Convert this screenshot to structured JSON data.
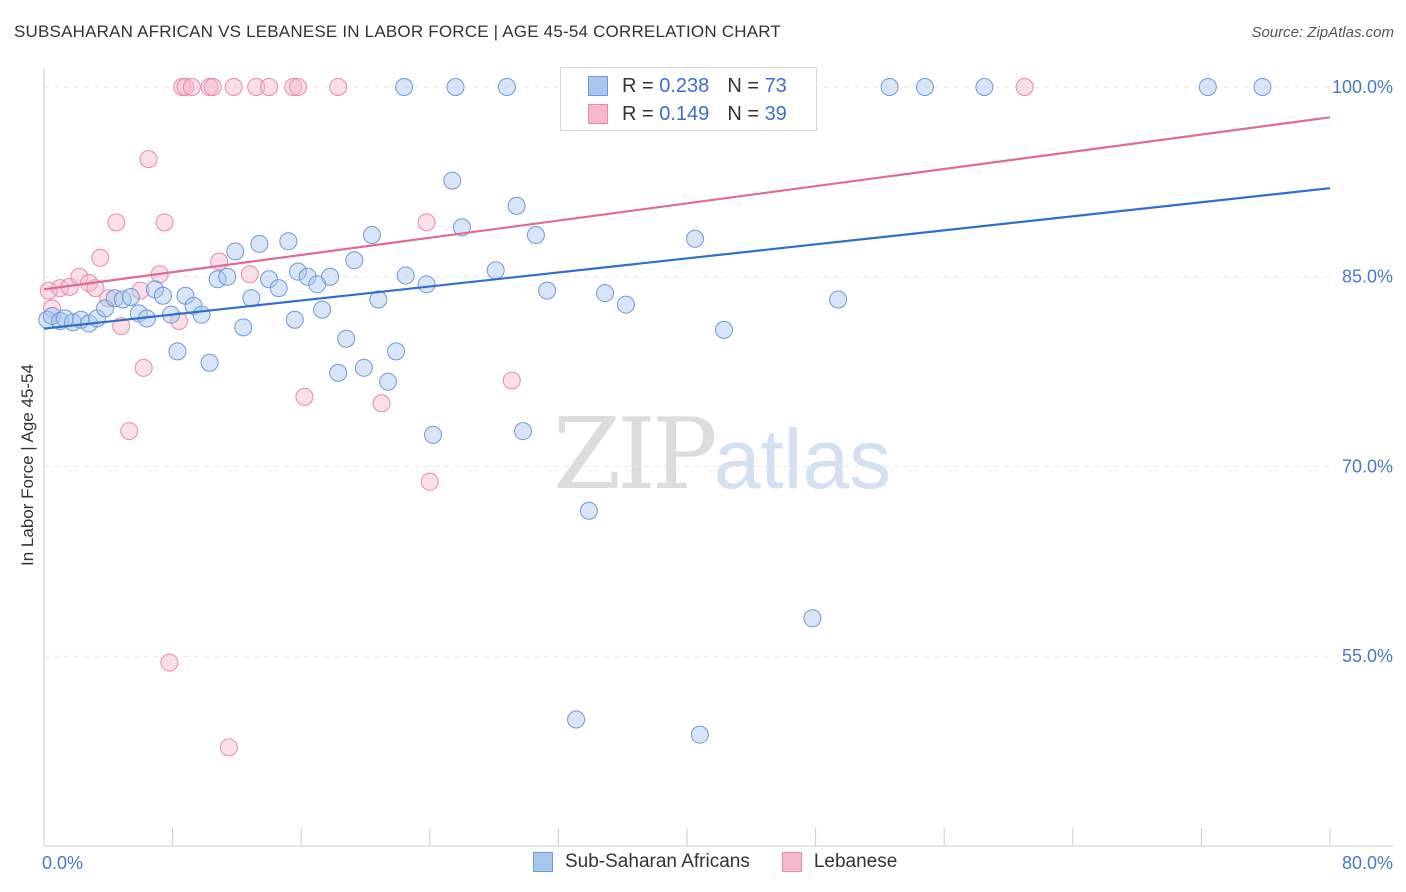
{
  "header": {
    "title": "SUBSAHARAN AFRICAN VS LEBANESE IN LABOR FORCE | AGE 45-54 CORRELATION CHART",
    "source": "Source: ZipAtlas.com"
  },
  "watermark": {
    "zip": "ZIP",
    "atlas": "atlas"
  },
  "legend": {
    "rows": [
      {
        "r_label": "R =",
        "r_value": "0.238",
        "n_label": "N =",
        "n_value": "73"
      },
      {
        "r_label": "R =",
        "r_value": "0.149",
        "n_label": "N =",
        "n_value": "39"
      }
    ],
    "bottom": [
      "Sub-Saharan Africans",
      "Lebanese"
    ]
  },
  "colors": {
    "blue_fill": "#a8c6ee",
    "blue_stroke": "#6f9ad6",
    "blue_line": "#2f6fcc",
    "pink_fill": "#f5b8cb",
    "pink_stroke": "#e98aa8",
    "pink_line": "#e0699a",
    "grid": "#e6e6e6",
    "tick_text": "#4a78c8"
  },
  "chart_data": {
    "type": "scatter",
    "title": "SUBSAHARAN AFRICAN VS LEBANESE IN LABOR FORCE | AGE 45-54 CORRELATION CHART",
    "xlabel": "",
    "ylabel": "In Labor Force | Age 45-54",
    "xlim": [
      0,
      80
    ],
    "ylim": [
      40,
      101.5
    ],
    "x_tick_labels": [
      "0.0%",
      "80.0%"
    ],
    "y_ticks": [
      55,
      70,
      85,
      100
    ],
    "y_tick_labels": [
      "55.0%",
      "70.0%",
      "85.0%",
      "100.0%"
    ],
    "grid": true,
    "series": [
      {
        "name": "Sub-Saharan Africans",
        "trend": [
          [
            0,
            80.9
          ],
          [
            80,
            92.0
          ]
        ],
        "points": [
          [
            0.2,
            81.6
          ],
          [
            0.5,
            81.9
          ],
          [
            1.0,
            81.5
          ],
          [
            1.3,
            81.7
          ],
          [
            1.8,
            81.4
          ],
          [
            2.3,
            81.6
          ],
          [
            2.8,
            81.3
          ],
          [
            3.3,
            81.7
          ],
          [
            3.8,
            82.5
          ],
          [
            4.4,
            83.3
          ],
          [
            4.9,
            83.2
          ],
          [
            5.4,
            83.4
          ],
          [
            5.9,
            82.1
          ],
          [
            6.4,
            81.7
          ],
          [
            6.9,
            84.0
          ],
          [
            7.4,
            83.5
          ],
          [
            7.9,
            82.0
          ],
          [
            8.3,
            79.1
          ],
          [
            8.8,
            83.5
          ],
          [
            9.3,
            82.7
          ],
          [
            9.8,
            82.0
          ],
          [
            10.3,
            78.2
          ],
          [
            10.8,
            84.8
          ],
          [
            11.4,
            85.0
          ],
          [
            11.9,
            87.0
          ],
          [
            12.4,
            81.0
          ],
          [
            12.9,
            83.3
          ],
          [
            13.4,
            87.6
          ],
          [
            14.0,
            84.8
          ],
          [
            14.6,
            84.1
          ],
          [
            15.2,
            87.8
          ],
          [
            15.6,
            81.6
          ],
          [
            15.8,
            85.4
          ],
          [
            16.4,
            85.0
          ],
          [
            17.0,
            84.4
          ],
          [
            17.3,
            82.4
          ],
          [
            17.8,
            85.0
          ],
          [
            18.3,
            77.4
          ],
          [
            18.8,
            80.1
          ],
          [
            19.3,
            86.3
          ],
          [
            19.9,
            77.8
          ],
          [
            20.4,
            88.3
          ],
          [
            20.8,
            83.2
          ],
          [
            21.4,
            76.7
          ],
          [
            21.9,
            79.1
          ],
          [
            22.5,
            85.1
          ],
          [
            23.8,
            84.4
          ],
          [
            24.2,
            72.5
          ],
          [
            25.4,
            92.6
          ],
          [
            26.0,
            88.9
          ],
          [
            28.1,
            85.5
          ],
          [
            29.4,
            90.6
          ],
          [
            29.8,
            72.8
          ],
          [
            30.6,
            88.3
          ],
          [
            31.3,
            83.9
          ],
          [
            33.1,
            50.0
          ],
          [
            33.9,
            66.5
          ],
          [
            34.9,
            83.7
          ],
          [
            36.2,
            82.8
          ],
          [
            40.5,
            88.0
          ],
          [
            40.8,
            48.8
          ],
          [
            42.3,
            80.8
          ],
          [
            47.8,
            58.0
          ],
          [
            49.4,
            83.2
          ],
          [
            22.4,
            100.0
          ],
          [
            25.6,
            100.0
          ],
          [
            28.8,
            100.0
          ],
          [
            43.0,
            100.0
          ],
          [
            52.6,
            100.0
          ],
          [
            54.8,
            100.0
          ],
          [
            58.5,
            100.0
          ],
          [
            72.4,
            100.0
          ],
          [
            75.8,
            100.0
          ]
        ]
      },
      {
        "name": "Lebanese",
        "trend": [
          [
            0,
            84.0
          ],
          [
            80,
            97.6
          ]
        ],
        "points": [
          [
            0.3,
            83.9
          ],
          [
            0.5,
            82.5
          ],
          [
            1.0,
            84.1
          ],
          [
            1.6,
            84.2
          ],
          [
            2.2,
            85.0
          ],
          [
            2.8,
            84.5
          ],
          [
            3.2,
            84.1
          ],
          [
            3.5,
            86.5
          ],
          [
            4.0,
            83.3
          ],
          [
            4.5,
            89.3
          ],
          [
            4.8,
            81.1
          ],
          [
            5.3,
            72.8
          ],
          [
            6.0,
            83.9
          ],
          [
            6.2,
            77.8
          ],
          [
            6.5,
            94.3
          ],
          [
            7.2,
            85.2
          ],
          [
            7.5,
            89.3
          ],
          [
            7.8,
            54.5
          ],
          [
            8.4,
            81.5
          ],
          [
            8.6,
            100.0
          ],
          [
            8.8,
            100.0
          ],
          [
            9.2,
            100.0
          ],
          [
            10.3,
            100.0
          ],
          [
            10.5,
            100.0
          ],
          [
            10.9,
            86.2
          ],
          [
            11.5,
            47.8
          ],
          [
            11.8,
            100.0
          ],
          [
            12.8,
            85.2
          ],
          [
            13.2,
            100.0
          ],
          [
            14.0,
            100.0
          ],
          [
            15.5,
            100.0
          ],
          [
            15.8,
            100.0
          ],
          [
            16.2,
            75.5
          ],
          [
            18.3,
            100.0
          ],
          [
            21.0,
            75.0
          ],
          [
            23.8,
            89.3
          ],
          [
            24.0,
            68.8
          ],
          [
            29.1,
            76.8
          ],
          [
            61.0,
            100.0
          ]
        ]
      }
    ]
  }
}
